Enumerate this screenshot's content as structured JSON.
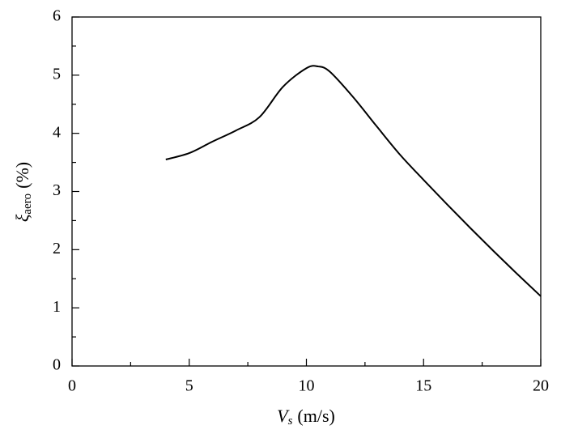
{
  "chart_data": {
    "type": "line",
    "xlabel": {
      "symbol": "V",
      "subscript": "s",
      "unit": "(m/s)"
    },
    "ylabel": {
      "symbol": "ξ",
      "subscript": "aero",
      "unit": "(%)"
    },
    "x": [
      4,
      5,
      6,
      7,
      8,
      9,
      10,
      10.5,
      11,
      12,
      13,
      14,
      15,
      16,
      17,
      18,
      19,
      20
    ],
    "series": [
      {
        "color": "#000000",
        "values": [
          3.55,
          3.66,
          3.86,
          4.05,
          4.28,
          4.8,
          5.12,
          5.15,
          5.06,
          4.62,
          4.12,
          3.63,
          3.2,
          2.78,
          2.37,
          1.97,
          1.58,
          1.2
        ]
      }
    ],
    "xlim": [
      0,
      20
    ],
    "xticks": [
      0,
      5,
      10,
      15,
      20
    ],
    "xminor_ticks": [
      2.5,
      7.5,
      12.5,
      17.5
    ],
    "ylim": [
      0,
      6
    ],
    "yticks": [
      0,
      1,
      2,
      3,
      4,
      5,
      6
    ],
    "yminor_ticks": [
      0.5,
      1.5,
      2.5,
      3.5,
      4.5,
      5.5
    ]
  }
}
